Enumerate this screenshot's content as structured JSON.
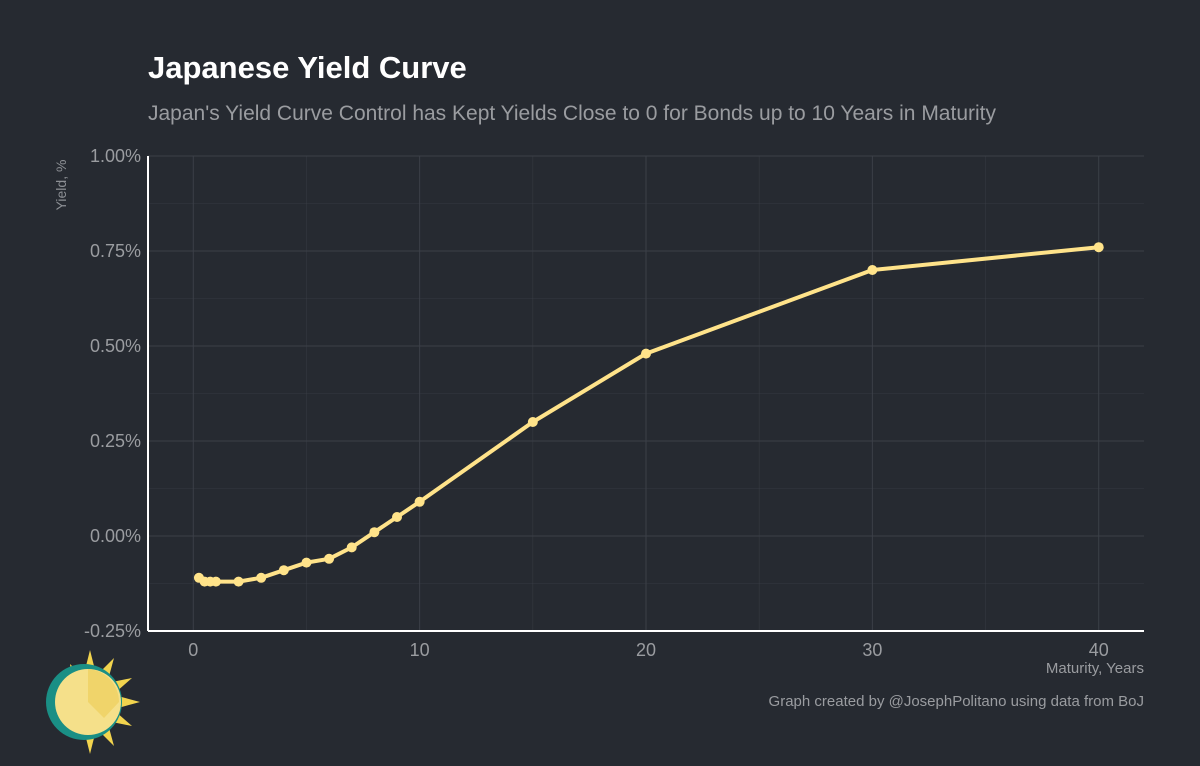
{
  "header": {
    "title": "Japanese Yield Curve",
    "subtitle": "Japan's Yield Curve Control has Kept Yields Close to 0 for Bonds up to 10 Years in Maturity"
  },
  "footer": {
    "caption": "Graph created by @JosephPolitano using data from BoJ"
  },
  "logo": {
    "icon": "sun-logo-icon"
  },
  "colors": {
    "background": "#262a31",
    "line": "#ffe38a",
    "grid": "#3c4048",
    "axis": "#ffffff",
    "text": "#9a9ca0"
  },
  "chart_data": {
    "type": "line",
    "xlabel": "Maturity, Years",
    "ylabel": "Yield, %",
    "xlim": [
      -2,
      42
    ],
    "ylim": [
      -0.25,
      1.0
    ],
    "x_ticks": [
      0,
      10,
      20,
      30,
      40
    ],
    "x_tick_labels": [
      "0",
      "10",
      "20",
      "30",
      "40"
    ],
    "y_ticks": [
      -0.25,
      0,
      0.25,
      0.5,
      0.75,
      1.0
    ],
    "y_tick_labels": [
      "-0.25%",
      "0.00%",
      "0.25%",
      "0.50%",
      "0.75%",
      "1.00%"
    ],
    "grid": true,
    "legend": "none",
    "series": [
      {
        "x": [
          0.25,
          0.5,
          0.75,
          1,
          2,
          3,
          4,
          5,
          6,
          7,
          8,
          9,
          10,
          15,
          20,
          30,
          40
        ],
        "y": [
          -0.11,
          -0.12,
          -0.12,
          -0.12,
          -0.12,
          -0.11,
          -0.09,
          -0.07,
          -0.06,
          -0.03,
          0.01,
          0.05,
          0.09,
          0.3,
          0.48,
          0.7,
          0.76
        ]
      }
    ]
  }
}
